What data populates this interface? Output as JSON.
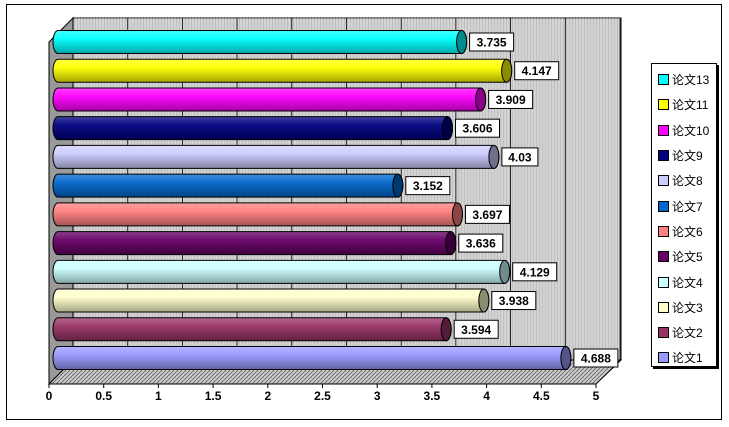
{
  "chart_data": {
    "type": "bar",
    "orientation": "horizontal",
    "style": "3d-cylinder",
    "categories": [
      "论文1",
      "论文2",
      "论文3",
      "论文4",
      "论文5",
      "论文6",
      "论文7",
      "论文8",
      "论文9",
      "论文10",
      "论文11",
      "论文13"
    ],
    "values": [
      4.688,
      3.594,
      3.938,
      4.129,
      3.636,
      3.697,
      3.152,
      4.03,
      3.606,
      3.909,
      4.147,
      3.735
    ],
    "value_labels": [
      "4.688",
      "3.594",
      "3.938",
      "4.129",
      "3.636",
      "3.697",
      "3.152",
      "4.03",
      "3.606",
      "3.909",
      "4.147",
      "3.735"
    ],
    "colors": [
      "#9999ff",
      "#993366",
      "#ffffcc",
      "#ccffff",
      "#660066",
      "#ff8080",
      "#0066cc",
      "#ccccff",
      "#000080",
      "#ff00ff",
      "#ffff00",
      "#00ffff"
    ],
    "x_ticks": [
      "0",
      "0.5",
      "1",
      "1.5",
      "2",
      "2.5",
      "3",
      "3.5",
      "4",
      "4.5",
      "5"
    ],
    "xlim": [
      0,
      5
    ],
    "legend_position": "right",
    "grid": "vertical",
    "title": "",
    "xlabel": "",
    "ylabel": ""
  }
}
